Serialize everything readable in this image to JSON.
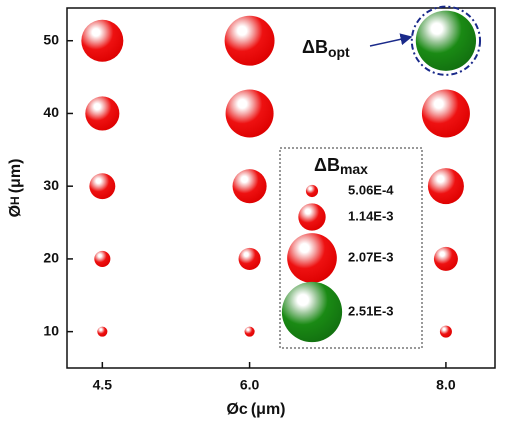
{
  "chart_data": {
    "type": "bubble",
    "x_label": {
      "main": "Øc",
      "unit": "(μm)"
    },
    "y_label": {
      "main": "Ø",
      "sub": "H",
      "unit": "(μm)"
    },
    "xlim": [
      4.14,
      8.5
    ],
    "ylim": [
      5,
      54.5
    ],
    "xticks": [
      4.5,
      {
        "value": 6,
        "label": "6.0"
      },
      {
        "value": 8,
        "label": "8.0"
      }
    ],
    "yticks": [
      10,
      20,
      30,
      40,
      50
    ],
    "color": "#e80000",
    "points": {
      "x": [
        4.5,
        4.5,
        4.5,
        4.5,
        4.5,
        6,
        6,
        6,
        6,
        6,
        8,
        8,
        8,
        8
      ],
      "y": [
        10,
        20,
        30,
        40,
        50,
        10,
        20,
        30,
        40,
        50,
        10,
        20,
        30,
        40
      ],
      "size": [
        0.00042,
        0.00067,
        0.00108,
        0.00142,
        0.00175,
        0.00042,
        0.00092,
        0.00142,
        0.002,
        0.00208,
        0.0005,
        0.001,
        0.0015,
        0.002
      ]
    },
    "highlight": {
      "x": 8,
      "y": 50,
      "size": 0.00251,
      "color": "#1a7a10",
      "label": {
        "main": "ΔB",
        "sub": "opt"
      }
    },
    "size_legend": {
      "title": {
        "main": "ΔB",
        "sub": "max"
      },
      "entries": [
        {
          "value": 0.000506,
          "label": "5.06E-4",
          "color": "#e80000"
        },
        {
          "value": 0.00114,
          "label": "1.14E-3",
          "color": "#e80000"
        },
        {
          "value": 0.00207,
          "label": "2.07E-3",
          "color": "#e80000"
        },
        {
          "value": 0.00251,
          "label": "2.51E-3",
          "color": "#1a7a10"
        }
      ]
    }
  }
}
